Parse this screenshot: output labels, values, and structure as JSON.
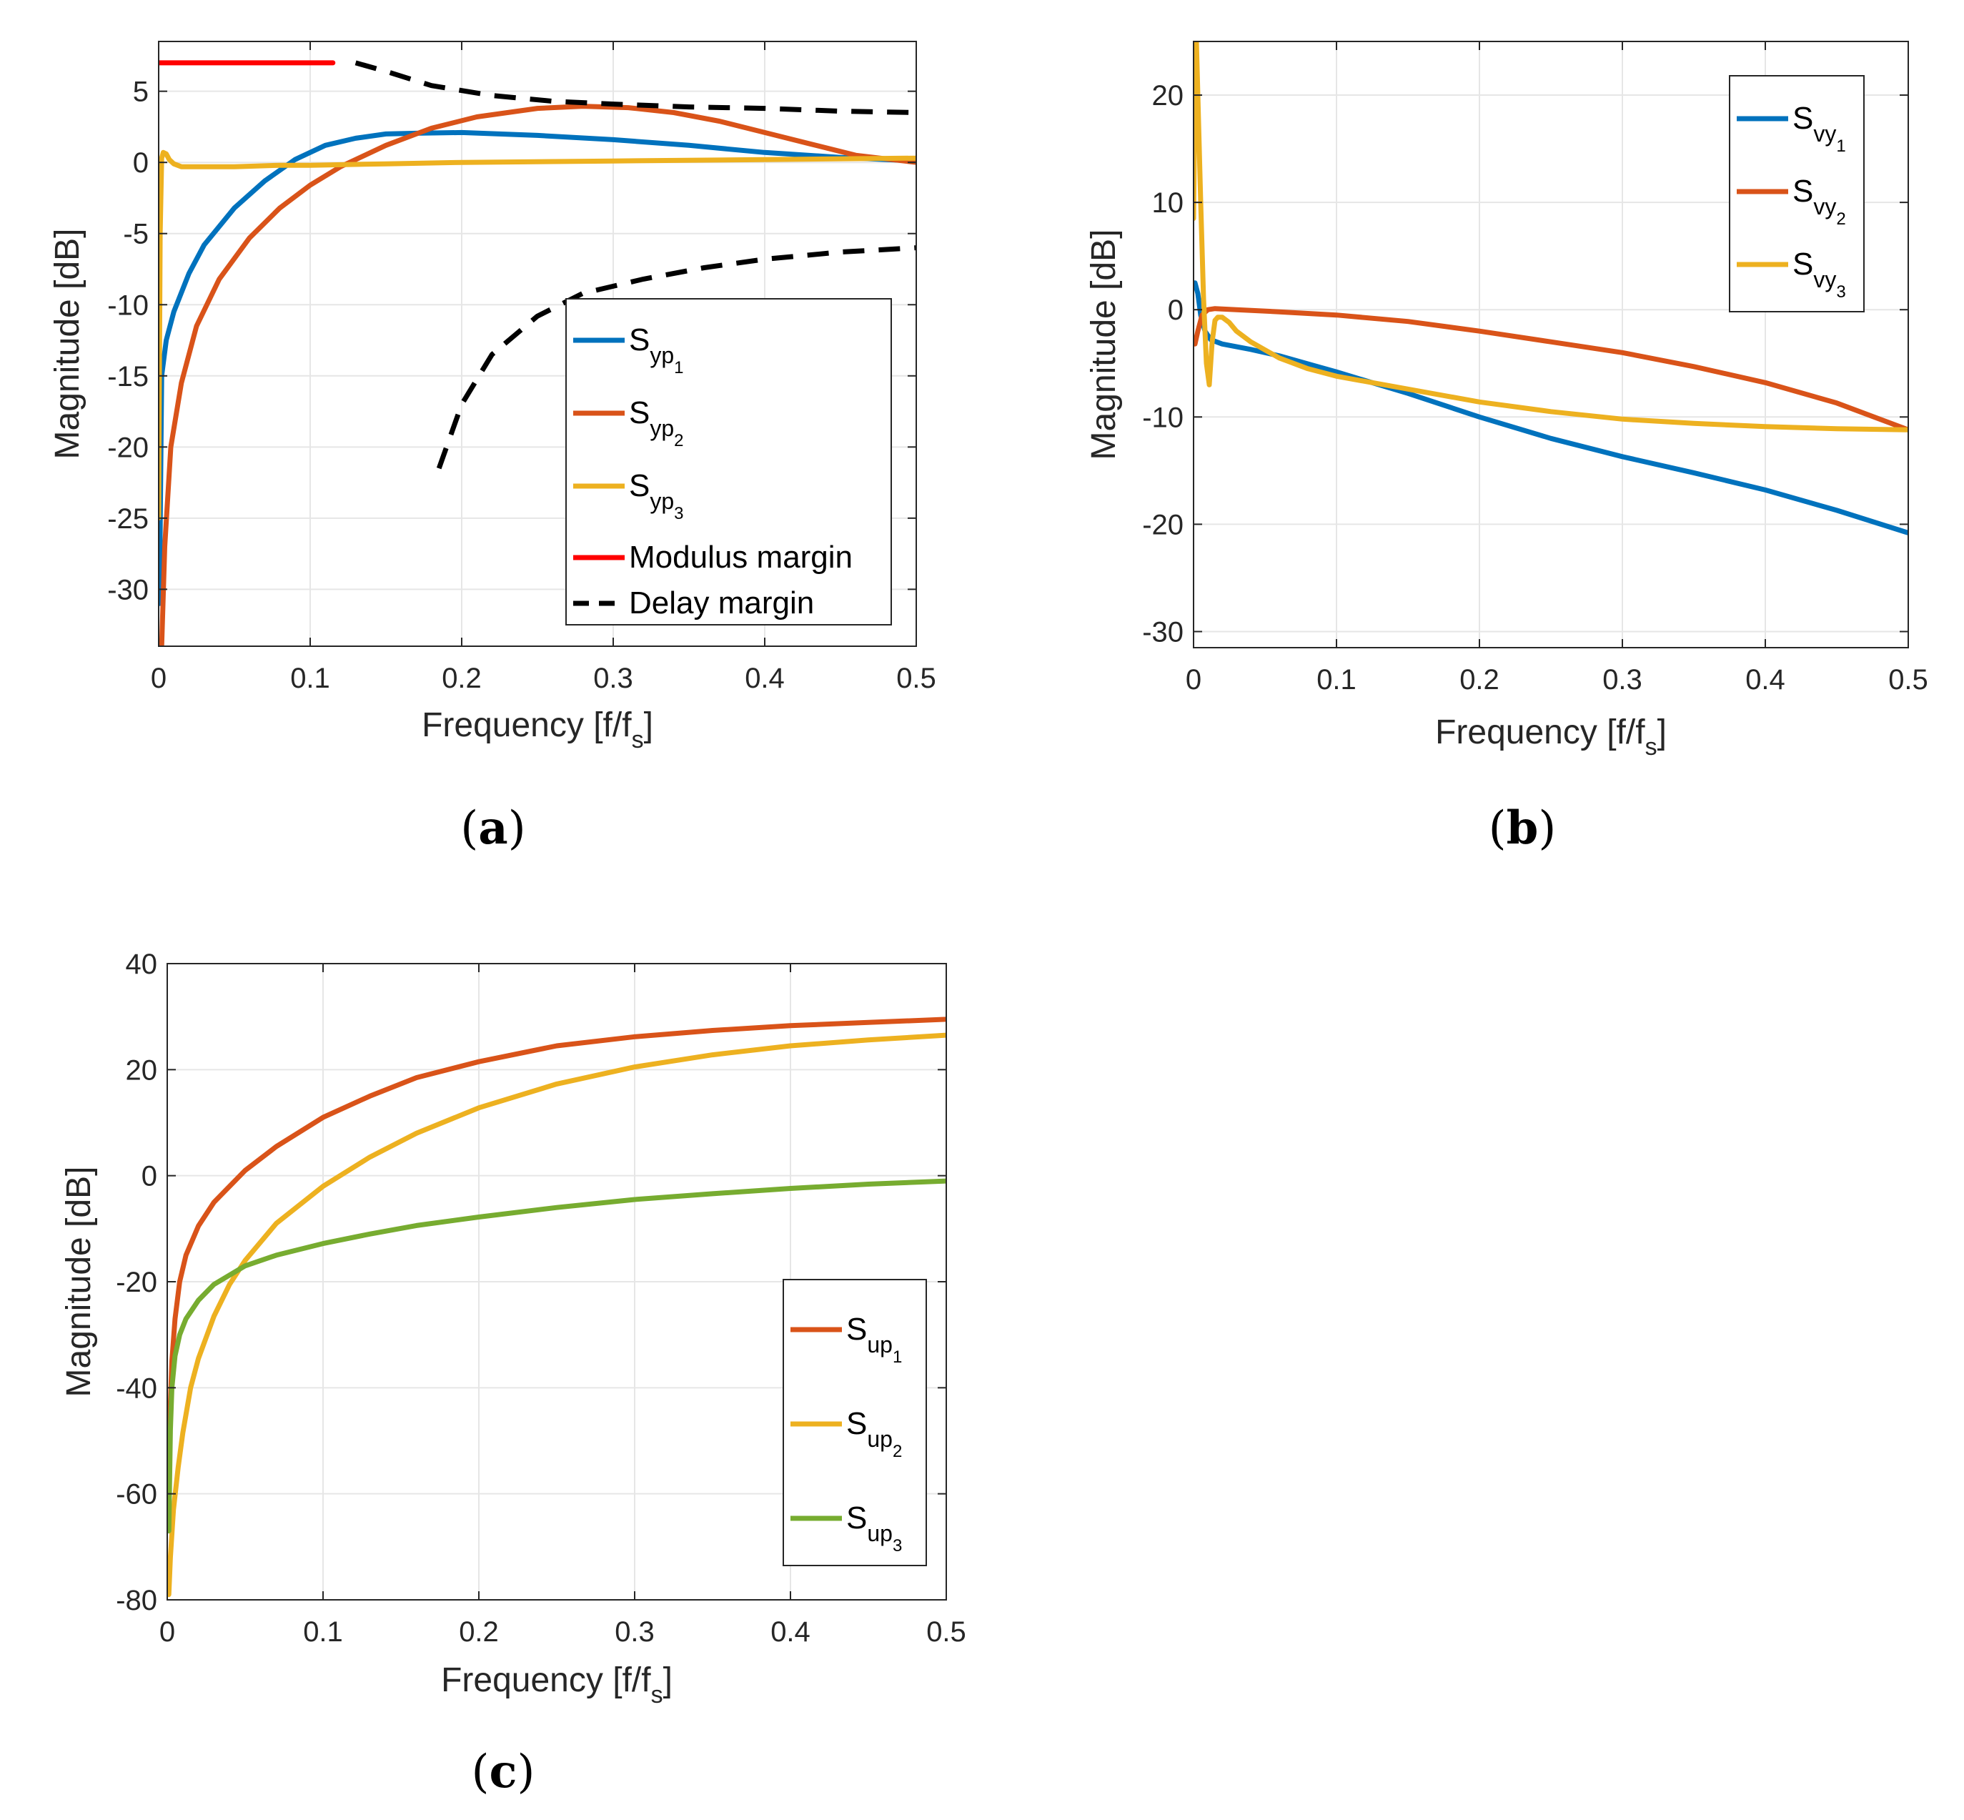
{
  "chart_data": [
    {
      "id": "a",
      "type": "line",
      "caption_letter": "a",
      "xlabel": "Frequency [f/f",
      "xlabel_sub": "s",
      "xlabel_close": "]",
      "ylabel": "Magnitude [dB]",
      "xlim": [
        0,
        0.5
      ],
      "ylim": [
        -34,
        8.5
      ],
      "xticks": [
        0,
        0.1,
        0.2,
        0.3,
        0.4,
        0.5
      ],
      "xtick_labels": [
        "0",
        "0.1",
        "0.2",
        "0.3",
        "0.4",
        "0.5"
      ],
      "yticks": [
        5,
        0,
        -5,
        -10,
        -15,
        -20,
        -25,
        -30
      ],
      "ytick_labels": [
        "5",
        "0",
        "-5",
        "-10",
        "-15",
        "-20",
        "-25",
        "-30"
      ],
      "grid": true,
      "legend_position": "lower-right",
      "series": [
        {
          "name": "S",
          "sub": "yp",
          "subsub": "1",
          "color": "#0072BD",
          "x": [
            0.0005,
            0.002,
            0.005,
            0.01,
            0.02,
            0.03,
            0.05,
            0.07,
            0.09,
            0.11,
            0.13,
            0.15,
            0.17,
            0.2,
            0.25,
            0.3,
            0.35,
            0.4,
            0.45,
            0.5
          ],
          "y": [
            -31,
            -15,
            -12.5,
            -10.5,
            -7.8,
            -5.8,
            -3.2,
            -1.3,
            0.2,
            1.2,
            1.7,
            2.0,
            2.05,
            2.1,
            1.9,
            1.6,
            1.2,
            0.7,
            0.35,
            0.1
          ]
        },
        {
          "name": "S",
          "sub": "yp",
          "subsub": "2",
          "color": "#D95319",
          "x": [
            0.002,
            0.004,
            0.008,
            0.015,
            0.025,
            0.04,
            0.06,
            0.08,
            0.1,
            0.12,
            0.15,
            0.18,
            0.21,
            0.25,
            0.28,
            0.31,
            0.34,
            0.37,
            0.4,
            0.43,
            0.46,
            0.5
          ],
          "y": [
            -34,
            -27,
            -20,
            -15.5,
            -11.5,
            -8.2,
            -5.3,
            -3.2,
            -1.6,
            -0.3,
            1.2,
            2.4,
            3.2,
            3.8,
            3.95,
            3.85,
            3.5,
            2.9,
            2.1,
            1.3,
            0.5,
            0.0
          ]
        },
        {
          "name": "S",
          "sub": "yp",
          "subsub": "3",
          "color": "#EDB120",
          "x": [
            0.0,
            0.001,
            0.002,
            0.003,
            0.005,
            0.007,
            0.01,
            0.015,
            0.02,
            0.03,
            0.05,
            0.08,
            0.1,
            0.15,
            0.2,
            0.3,
            0.4,
            0.5
          ],
          "y": [
            -25,
            -5,
            0.3,
            0.7,
            0.6,
            0.2,
            -0.1,
            -0.3,
            -0.3,
            -0.3,
            -0.3,
            -0.2,
            -0.2,
            -0.1,
            0.0,
            0.1,
            0.2,
            0.3
          ]
        },
        {
          "name": "Modulus margin",
          "color": "#FF0000",
          "dash": false,
          "x": [
            0,
            0.115
          ],
          "y": [
            7,
            7
          ]
        },
        {
          "name": "Delay margin",
          "color": "#000000",
          "dash": true,
          "segments": [
            {
              "x": [
                0.13,
                0.15,
                0.18,
                0.22,
                0.26,
                0.3,
                0.35,
                0.4,
                0.45,
                0.5
              ],
              "y": [
                7,
                6.4,
                5.4,
                4.7,
                4.3,
                4.1,
                3.9,
                3.8,
                3.6,
                3.5
              ]
            },
            {
              "x": [
                0.185,
                0.2,
                0.22,
                0.25,
                0.28,
                0.32,
                0.36,
                0.4,
                0.45,
                0.5
              ],
              "y": [
                -21.5,
                -17,
                -13.5,
                -10.8,
                -9.2,
                -8.2,
                -7.4,
                -6.8,
                -6.3,
                -6
              ]
            }
          ]
        }
      ]
    },
    {
      "id": "b",
      "type": "line",
      "caption_letter": "b",
      "xlabel": "Frequency [f/f",
      "xlabel_sub": "s",
      "xlabel_close": "]",
      "ylabel": "Magnitude [dB]",
      "xlim": [
        0,
        0.5
      ],
      "ylim": [
        -31.5,
        25
      ],
      "xticks": [
        0,
        0.1,
        0.2,
        0.3,
        0.4,
        0.5
      ],
      "xtick_labels": [
        "0",
        "0.1",
        "0.2",
        "0.3",
        "0.4",
        "0.5"
      ],
      "yticks": [
        20,
        10,
        0,
        -10,
        -20,
        -30
      ],
      "ytick_labels": [
        "20",
        "10",
        "0",
        "-10",
        "-20",
        "-30"
      ],
      "grid": true,
      "legend_position": "top-right",
      "series": [
        {
          "name": "S",
          "sub": "vy",
          "subsub": "1",
          "color": "#0072BD",
          "x": [
            0.001,
            0.003,
            0.005,
            0.008,
            0.012,
            0.02,
            0.04,
            0.06,
            0.1,
            0.15,
            0.2,
            0.25,
            0.3,
            0.35,
            0.4,
            0.45,
            0.5
          ],
          "y": [
            2.5,
            1.5,
            -0.5,
            -2.0,
            -2.8,
            -3.2,
            -3.7,
            -4.3,
            -5.8,
            -7.8,
            -10.0,
            -12.0,
            -13.7,
            -15.2,
            -16.8,
            -18.7,
            -20.8
          ]
        },
        {
          "name": "S",
          "sub": "vy",
          "subsub": "2",
          "color": "#D95319",
          "x": [
            0.001,
            0.003,
            0.006,
            0.01,
            0.015,
            0.03,
            0.06,
            0.1,
            0.15,
            0.2,
            0.25,
            0.3,
            0.35,
            0.4,
            0.45,
            0.5
          ],
          "y": [
            -3.2,
            -2.0,
            -0.5,
            0.0,
            0.1,
            0.0,
            -0.2,
            -0.5,
            -1.1,
            -2.0,
            -3.0,
            -4.0,
            -5.3,
            -6.8,
            -8.7,
            -11.2
          ]
        },
        {
          "name": "S",
          "sub": "vy",
          "subsub": "3",
          "color": "#EDB120",
          "x": [
            0.0,
            0.001,
            0.002,
            0.003,
            0.005,
            0.007,
            0.009,
            0.011,
            0.013,
            0.015,
            0.017,
            0.02,
            0.025,
            0.03,
            0.04,
            0.06,
            0.08,
            0.1,
            0.15,
            0.2,
            0.25,
            0.3,
            0.35,
            0.4,
            0.45,
            0.5
          ],
          "y": [
            8.5,
            20,
            25,
            20,
            10,
            1,
            -5,
            -7,
            -3,
            -1,
            -0.7,
            -0.7,
            -1.2,
            -2,
            -3,
            -4.5,
            -5.5,
            -6.2,
            -7.4,
            -8.6,
            -9.5,
            -10.2,
            -10.6,
            -10.9,
            -11.1,
            -11.2
          ]
        }
      ]
    },
    {
      "id": "c",
      "type": "line",
      "caption_letter": "c",
      "xlabel": "Frequency [f/f",
      "xlabel_sub": "s",
      "xlabel_close": "]",
      "ylabel": "Magnitude [dB]",
      "xlim": [
        0,
        0.5
      ],
      "ylim": [
        -80,
        40
      ],
      "xticks": [
        0,
        0.1,
        0.2,
        0.3,
        0.4,
        0.5
      ],
      "xtick_labels": [
        "0",
        "0.1",
        "0.2",
        "0.3",
        "0.4",
        "0.5"
      ],
      "yticks": [
        40,
        20,
        0,
        -20,
        -40,
        -60,
        -80
      ],
      "ytick_labels": [
        "40",
        "20",
        "0",
        "-20",
        "-40",
        "-60",
        "-80"
      ],
      "grid": true,
      "legend_position": "bottom-right",
      "series": [
        {
          "name": "S",
          "sub": "up",
          "subsub": "1",
          "color": "#D95319",
          "x": [
            0.001,
            0.002,
            0.003,
            0.005,
            0.008,
            0.012,
            0.02,
            0.03,
            0.05,
            0.07,
            0.1,
            0.13,
            0.16,
            0.2,
            0.25,
            0.3,
            0.35,
            0.4,
            0.45,
            0.5
          ],
          "y": [
            -55,
            -43,
            -35,
            -27,
            -20,
            -15,
            -9.5,
            -5,
            1,
            5.5,
            11,
            15,
            18.5,
            21.5,
            24.5,
            26.2,
            27.4,
            28.3,
            28.9,
            29.5
          ]
        },
        {
          "name": "S",
          "sub": "up",
          "subsub": "2",
          "color": "#EDB120",
          "x": [
            0.001,
            0.002,
            0.004,
            0.007,
            0.01,
            0.015,
            0.02,
            0.03,
            0.04,
            0.05,
            0.07,
            0.1,
            0.13,
            0.16,
            0.2,
            0.25,
            0.3,
            0.35,
            0.4,
            0.45,
            0.5
          ],
          "y": [
            -79,
            -72,
            -63,
            -55,
            -48.5,
            -40,
            -34.5,
            -26.5,
            -20.5,
            -16,
            -9,
            -2,
            3.5,
            8,
            12.8,
            17.3,
            20.5,
            22.8,
            24.5,
            25.6,
            26.5
          ]
        },
        {
          "name": "S",
          "sub": "up",
          "subsub": "3",
          "color": "#77AC30",
          "x": [
            0.001,
            0.002,
            0.003,
            0.005,
            0.008,
            0.012,
            0.02,
            0.03,
            0.05,
            0.07,
            0.1,
            0.13,
            0.16,
            0.2,
            0.25,
            0.3,
            0.35,
            0.4,
            0.45,
            0.5
          ],
          "y": [
            -67,
            -48,
            -40,
            -34,
            -30,
            -27,
            -23.5,
            -20.5,
            -17,
            -15,
            -12.8,
            -11,
            -9.4,
            -7.8,
            -6,
            -4.5,
            -3.4,
            -2.4,
            -1.6,
            -1.0
          ]
        }
      ]
    }
  ]
}
